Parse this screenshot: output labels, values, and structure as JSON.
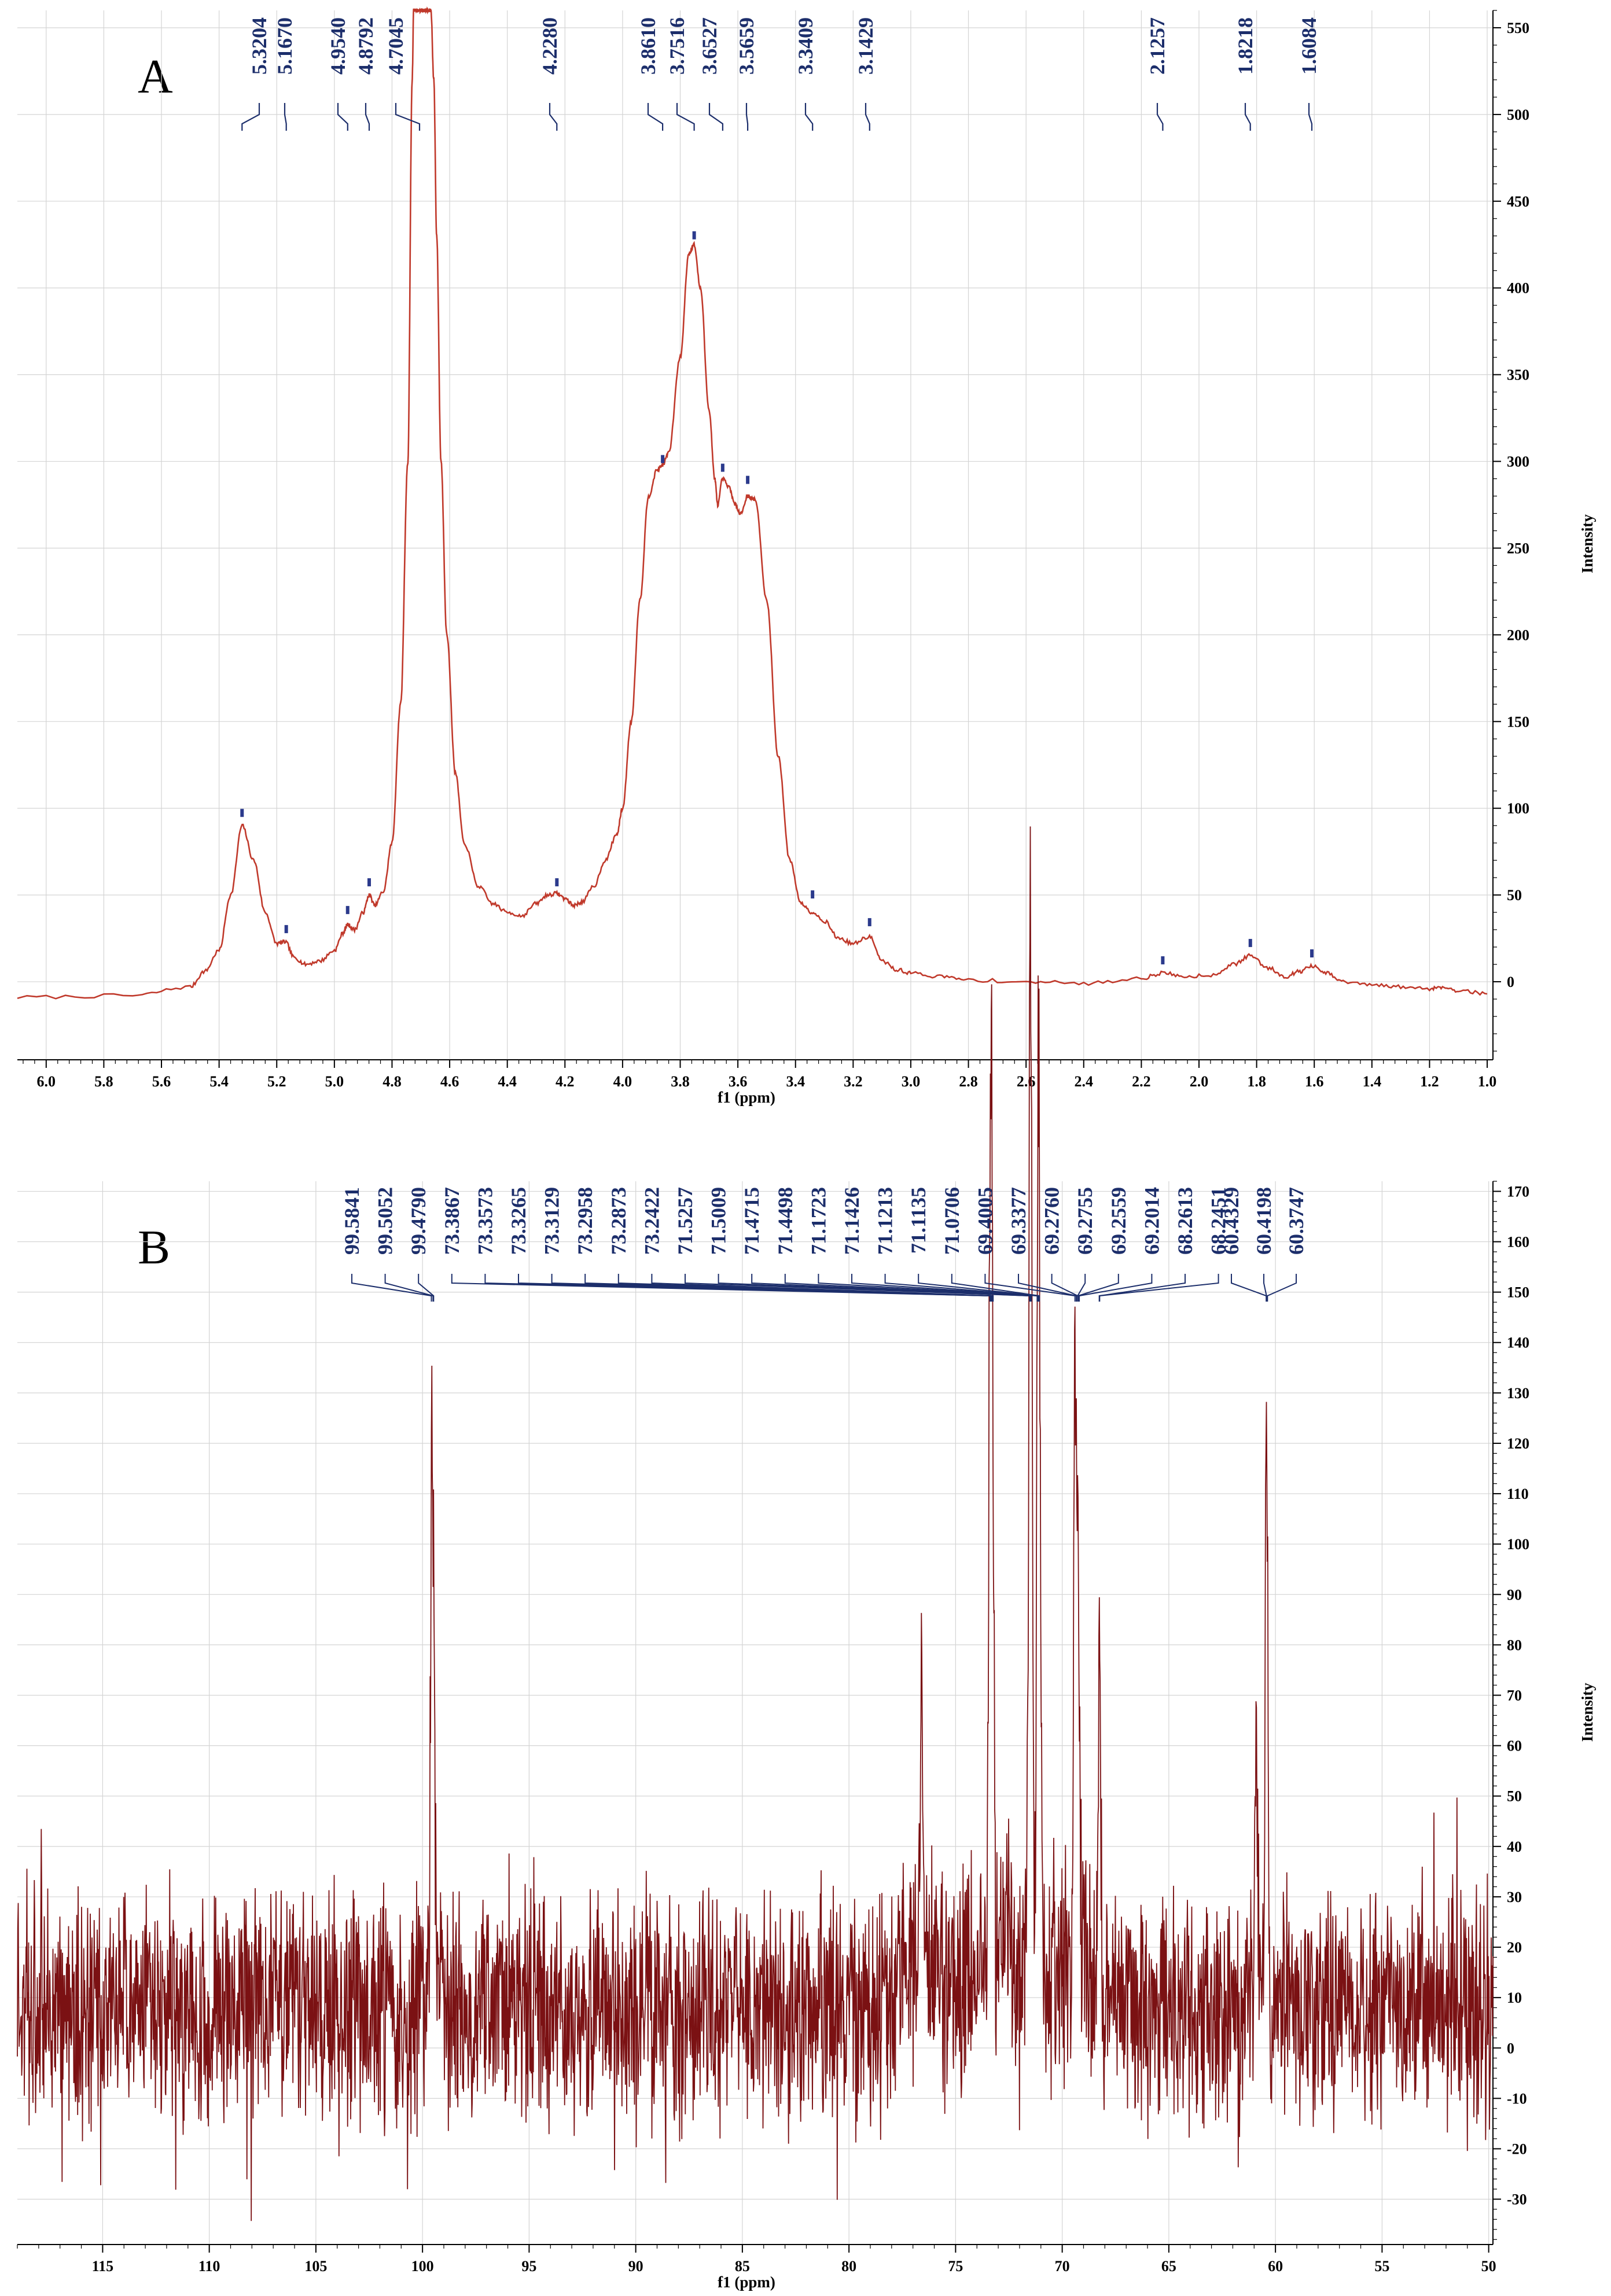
{
  "chart_data": [
    {
      "panel": "A",
      "type": "line",
      "xlabel": "f1 (ppm)",
      "ylabel": "Intensity",
      "xlim": [
        6.1,
        0.98
      ],
      "ylim": [
        -45,
        560
      ],
      "x_ticks": [
        "6.0",
        "5.8",
        "5.6",
        "5.4",
        "5.2",
        "5.0",
        "4.8",
        "4.6",
        "4.4",
        "4.2",
        "4.0",
        "3.8",
        "3.6",
        "3.4",
        "3.2",
        "3.0",
        "2.8",
        "2.6",
        "2.4",
        "2.2",
        "2.0",
        "1.8",
        "1.6",
        "1.4",
        "1.2",
        "1.0"
      ],
      "y_ticks": [
        "550",
        "500",
        "450",
        "400",
        "350",
        "300",
        "250",
        "200",
        "150",
        "100",
        "50",
        "0"
      ],
      "grid": true,
      "peak_labels": [
        "5.3204",
        "5.1670",
        "4.9540",
        "4.8792",
        "4.7045",
        "4.2280",
        "3.8610",
        "3.7516",
        "3.6527",
        "3.5659",
        "3.3409",
        "3.1429",
        "2.1257",
        "1.8218",
        "1.6084"
      ],
      "series": [
        {
          "color": "#c0392b",
          "x": [
            6.1,
            5.7,
            5.5,
            5.45,
            5.4,
            5.36,
            5.32,
            5.28,
            5.24,
            5.2,
            5.17,
            5.14,
            5.1,
            5.05,
            5.0,
            4.97,
            4.954,
            4.93,
            4.9,
            4.879,
            4.86,
            4.83,
            4.8,
            4.77,
            4.745,
            4.73,
            4.725,
            4.715,
            4.705,
            4.695,
            4.685,
            4.675,
            4.665,
            4.655,
            4.645,
            4.63,
            4.61,
            4.58,
            4.55,
            4.5,
            4.45,
            4.4,
            4.35,
            4.3,
            4.26,
            4.228,
            4.2,
            4.17,
            4.14,
            4.1,
            4.06,
            4.02,
            4.0,
            3.97,
            3.94,
            3.91,
            3.88,
            3.861,
            3.84,
            3.8,
            3.77,
            3.752,
            3.73,
            3.7,
            3.68,
            3.67,
            3.653,
            3.63,
            3.61,
            3.59,
            3.566,
            3.54,
            3.5,
            3.46,
            3.42,
            3.38,
            3.341,
            3.3,
            3.25,
            3.2,
            3.143,
            3.1,
            3.05,
            3.0,
            2.9,
            2.8,
            2.6,
            2.4,
            2.2,
            2.125,
            2.05,
            1.95,
            1.88,
            1.822,
            1.76,
            1.7,
            1.65,
            1.608,
            1.56,
            1.5,
            1.4,
            1.3,
            1.2,
            1.16,
            1.1,
            1.0
          ],
          "y": [
            -9,
            -8,
            -3,
            6,
            18,
            50,
            90,
            70,
            40,
            22,
            23,
            14,
            10,
            12,
            18,
            28,
            33,
            30,
            40,
            50,
            44,
            52,
            80,
            160,
            300,
            520,
            560,
            560,
            560,
            560,
            560,
            560,
            560,
            520,
            430,
            300,
            200,
            120,
            80,
            55,
            45,
            40,
            38,
            45,
            50,
            51,
            48,
            44,
            46,
            55,
            70,
            85,
            100,
            150,
            220,
            280,
            295,
            298,
            305,
            360,
            420,
            425,
            400,
            330,
            290,
            275,
            290,
            285,
            275,
            270,
            280,
            278,
            220,
            130,
            70,
            45,
            40,
            35,
            25,
            22,
            26,
            12,
            7,
            5,
            3,
            1,
            0,
            -1,
            2,
            5,
            3,
            4,
            10,
            15,
            8,
            3,
            6,
            9,
            5,
            0,
            -2,
            -3,
            -4,
            -3,
            -5,
            -7
          ]
        }
      ]
    },
    {
      "panel": "B",
      "type": "line",
      "xlabel": "f1 (ppm)",
      "ylabel": "Intensity",
      "xlim": [
        119,
        49.8
      ],
      "ylim": [
        -39,
        172
      ],
      "x_ticks": [
        "115",
        "110",
        "105",
        "100",
        "95",
        "90",
        "85",
        "80",
        "75",
        "70",
        "65",
        "60",
        "55",
        "50"
      ],
      "y_ticks": [
        "170",
        "160",
        "150",
        "140",
        "130",
        "120",
        "110",
        "100",
        "90",
        "80",
        "70",
        "60",
        "50",
        "40",
        "30",
        "20",
        "10",
        "0",
        "-10",
        "-20",
        "-30"
      ],
      "grid": true,
      "peak_labels": [
        "99.5841",
        "99.5052",
        "99.4790",
        "73.3867",
        "73.3573",
        "73.3265",
        "73.3129",
        "73.2958",
        "73.2873",
        "73.2422",
        "71.5257",
        "71.5009",
        "71.4715",
        "71.4498",
        "71.1723",
        "71.1426",
        "71.1213",
        "71.1135",
        "71.0706",
        "69.4005",
        "69.3377",
        "69.2760",
        "69.2755",
        "69.2559",
        "69.2014",
        "68.2613",
        "68.2451",
        "60.4329",
        "60.4198",
        "60.3747"
      ],
      "noise": {
        "mean": 8,
        "amplitude": 28
      },
      "series": [
        {
          "color": "#7b1113",
          "peaks_x": [
            99.58,
            99.48,
            76.6,
            73.39,
            73.29,
            71.53,
            71.45,
            71.14,
            71.07,
            69.4,
            69.26,
            68.26,
            60.9,
            60.42
          ],
          "peaks_y": [
            92,
            88,
            66,
            148,
            140,
            148,
            145,
            140,
            120,
            120,
            100,
            85,
            60,
            130
          ]
        }
      ]
    }
  ]
}
